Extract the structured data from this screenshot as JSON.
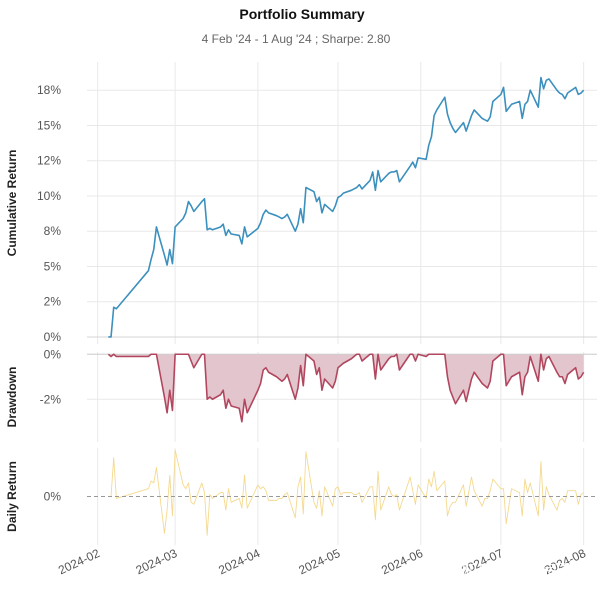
{
  "title": "Portfolio Summary",
  "subtitle": "4 Feb '24 -  1 Aug '24 ;  Sharpe: 2.80",
  "watermark": "知乎 @余睦宗寻",
  "colors": {
    "cumulative": "#3c90be",
    "drawdown_line": "#b1475f",
    "drawdown_fill": "#e3c5cd",
    "daily": "#f4d98f",
    "zero_line": "#999999"
  },
  "chart_data": [
    {
      "type": "line",
      "name": "cumulative-return",
      "ylabel": "Cumulative Return",
      "ylim": [
        -0.5,
        19.5
      ],
      "yticks": [
        0,
        2.5,
        5,
        7.5,
        10,
        12.5,
        15,
        17.5
      ],
      "ytick_labels": [
        "0%",
        "2%",
        "5%",
        "8%",
        "10%",
        "12%",
        "15%",
        "18%"
      ],
      "x_axis_start": "2024-01-28",
      "x": [
        "2024-02-05",
        "2024-02-06",
        "2024-02-07",
        "2024-02-08",
        "2024-02-20",
        "2024-02-21",
        "2024-02-22",
        "2024-02-23",
        "2024-02-26",
        "2024-02-27",
        "2024-02-28",
        "2024-02-29",
        "2024-03-01",
        "2024-03-04",
        "2024-03-05",
        "2024-03-06",
        "2024-03-07",
        "2024-03-08",
        "2024-03-11",
        "2024-03-12",
        "2024-03-13",
        "2024-03-14",
        "2024-03-15",
        "2024-03-18",
        "2024-03-19",
        "2024-03-20",
        "2024-03-21",
        "2024-03-22",
        "2024-03-25",
        "2024-03-26",
        "2024-03-27",
        "2024-03-28",
        "2024-04-01",
        "2024-04-02",
        "2024-04-03",
        "2024-04-04",
        "2024-04-05",
        "2024-04-08",
        "2024-04-09",
        "2024-04-10",
        "2024-04-11",
        "2024-04-12",
        "2024-04-15",
        "2024-04-16",
        "2024-04-17",
        "2024-04-18",
        "2024-04-19",
        "2024-04-22",
        "2024-04-23",
        "2024-04-24",
        "2024-04-25",
        "2024-04-26",
        "2024-04-29",
        "2024-04-30",
        "2024-05-01",
        "2024-05-02",
        "2024-05-03",
        "2024-05-06",
        "2024-05-07",
        "2024-05-08",
        "2024-05-09",
        "2024-05-10",
        "2024-05-13",
        "2024-05-14",
        "2024-05-15",
        "2024-05-16",
        "2024-05-17",
        "2024-05-20",
        "2024-05-21",
        "2024-05-22",
        "2024-05-23",
        "2024-05-24",
        "2024-05-28",
        "2024-05-29",
        "2024-05-30",
        "2024-05-31",
        "2024-06-03",
        "2024-06-04",
        "2024-06-05",
        "2024-06-06",
        "2024-06-07",
        "2024-06-10",
        "2024-06-11",
        "2024-06-12",
        "2024-06-13",
        "2024-06-14",
        "2024-06-17",
        "2024-06-18",
        "2024-06-20",
        "2024-06-21",
        "2024-06-24",
        "2024-06-25",
        "2024-06-26",
        "2024-06-27",
        "2024-06-28",
        "2024-07-01",
        "2024-07-02",
        "2024-07-03",
        "2024-07-05",
        "2024-07-08",
        "2024-07-09",
        "2024-07-10",
        "2024-07-11",
        "2024-07-12",
        "2024-07-15",
        "2024-07-16",
        "2024-07-17",
        "2024-07-18",
        "2024-07-19",
        "2024-07-22",
        "2024-07-23",
        "2024-07-24",
        "2024-07-25",
        "2024-07-26",
        "2024-07-29",
        "2024-07-30",
        "2024-07-31",
        "2024-08-01"
      ],
      "values": [
        0,
        0,
        2.1,
        2.0,
        4.7,
        5.5,
        6.2,
        7.8,
        5.8,
        5.1,
        6.2,
        5.2,
        7.8,
        8.4,
        8.8,
        9.6,
        9.3,
        8.9,
        9.6,
        9.8,
        7.6,
        7.7,
        7.6,
        7.8,
        8.0,
        7.2,
        7.6,
        7.3,
        7.2,
        6.6,
        7.8,
        7.1,
        7.7,
        8.1,
        8.7,
        9.0,
        8.8,
        8.6,
        8.5,
        8.4,
        8.5,
        8.7,
        7.5,
        8.0,
        9.1,
        8.1,
        10.6,
        10.3,
        9.6,
        9.9,
        8.8,
        9.4,
        8.9,
        9.3,
        9.9,
        10.0,
        10.2,
        10.4,
        10.5,
        10.6,
        10.8,
        10.5,
        11.1,
        11.7,
        10.4,
        11.8,
        11.0,
        11.6,
        11.7,
        11.7,
        11.8,
        11.0,
        12.1,
        12.4,
        12.0,
        12.7,
        12.6,
        13.6,
        14.2,
        15.7,
        16.1,
        17.0,
        15.8,
        15.2,
        14.8,
        14.5,
        15.2,
        14.6,
        15.7,
        16.1,
        15.5,
        15.4,
        15.3,
        15.6,
        16.7,
        17.2,
        17.7,
        16.0,
        16.5,
        16.7,
        15.5,
        16.5,
        16.7,
        17.5,
        16.3,
        18.4,
        17.6,
        18.2,
        18.3,
        17.5,
        17.3,
        17.2,
        16.9,
        17.3,
        17.7,
        17.2,
        17.3,
        17.5
      ]
    },
    {
      "type": "area",
      "name": "drawdown",
      "ylabel": "Drawdown",
      "ylim": [
        -3.9,
        0.1
      ],
      "yticks": [
        0,
        -2
      ],
      "ytick_labels": [
        "0%",
        "-2%"
      ],
      "x": [
        "2024-02-05",
        "2024-02-06",
        "2024-02-07",
        "2024-02-08",
        "2024-02-20",
        "2024-02-21",
        "2024-02-22",
        "2024-02-23",
        "2024-02-26",
        "2024-02-27",
        "2024-02-28",
        "2024-02-29",
        "2024-03-01",
        "2024-03-04",
        "2024-03-05",
        "2024-03-06",
        "2024-03-07",
        "2024-03-08",
        "2024-03-11",
        "2024-03-12",
        "2024-03-13",
        "2024-03-14",
        "2024-03-15",
        "2024-03-18",
        "2024-03-19",
        "2024-03-20",
        "2024-03-21",
        "2024-03-22",
        "2024-03-25",
        "2024-03-26",
        "2024-03-27",
        "2024-03-28",
        "2024-04-01",
        "2024-04-02",
        "2024-04-03",
        "2024-04-04",
        "2024-04-05",
        "2024-04-08",
        "2024-04-09",
        "2024-04-10",
        "2024-04-11",
        "2024-04-12",
        "2024-04-15",
        "2024-04-16",
        "2024-04-17",
        "2024-04-18",
        "2024-04-19",
        "2024-04-22",
        "2024-04-23",
        "2024-04-24",
        "2024-04-25",
        "2024-04-26",
        "2024-04-29",
        "2024-04-30",
        "2024-05-01",
        "2024-05-02",
        "2024-05-03",
        "2024-05-06",
        "2024-05-07",
        "2024-05-08",
        "2024-05-09",
        "2024-05-10",
        "2024-05-13",
        "2024-05-14",
        "2024-05-15",
        "2024-05-16",
        "2024-05-17",
        "2024-05-20",
        "2024-05-21",
        "2024-05-22",
        "2024-05-23",
        "2024-05-24",
        "2024-05-28",
        "2024-05-29",
        "2024-05-30",
        "2024-05-31",
        "2024-06-03",
        "2024-06-04",
        "2024-06-05",
        "2024-06-06",
        "2024-06-07",
        "2024-06-10",
        "2024-06-11",
        "2024-06-12",
        "2024-06-13",
        "2024-06-14",
        "2024-06-17",
        "2024-06-18",
        "2024-06-20",
        "2024-06-21",
        "2024-06-24",
        "2024-06-25",
        "2024-06-26",
        "2024-06-27",
        "2024-06-28",
        "2024-07-01",
        "2024-07-02",
        "2024-07-03",
        "2024-07-05",
        "2024-07-08",
        "2024-07-09",
        "2024-07-10",
        "2024-07-11",
        "2024-07-12",
        "2024-07-15",
        "2024-07-16",
        "2024-07-17",
        "2024-07-18",
        "2024-07-19",
        "2024-07-22",
        "2024-07-23",
        "2024-07-24",
        "2024-07-25",
        "2024-07-26",
        "2024-07-29",
        "2024-07-30",
        "2024-07-31",
        "2024-08-01"
      ],
      "values": [
        0,
        -0.1,
        0,
        -0.1,
        -0.1,
        0,
        0,
        0,
        -1.9,
        -2.6,
        -1.6,
        -2.5,
        0,
        0,
        0,
        0,
        -0.3,
        -0.6,
        0,
        0,
        -2.0,
        -1.9,
        -2.0,
        -1.8,
        -1.6,
        -2.4,
        -2.0,
        -2.3,
        -2.4,
        -3.0,
        -2.0,
        -2.6,
        -1.6,
        -1.3,
        -0.7,
        -0.6,
        -0.8,
        -1.0,
        -1.1,
        -1.2,
        -1.1,
        -0.9,
        -2.0,
        -1.5,
        -0.5,
        -1.4,
        0,
        -0.3,
        -0.9,
        -0.6,
        -1.6,
        -1.1,
        -1.5,
        -1.2,
        -0.6,
        -0.5,
        -0.4,
        -0.2,
        -0.1,
        0,
        0,
        -0.3,
        0,
        0,
        -1.1,
        0,
        -0.7,
        -0.2,
        -0.1,
        -0.1,
        0,
        -0.7,
        0,
        0,
        -0.3,
        0,
        -0.1,
        0,
        0,
        0,
        0,
        0,
        -1.0,
        -1.6,
        -1.9,
        -2.2,
        -1.6,
        -2.1,
        -1.1,
        -0.8,
        -1.3,
        -1.4,
        -1.5,
        -1.2,
        -0.3,
        0,
        0,
        -1.4,
        -1.0,
        -0.8,
        -1.8,
        -1.0,
        -0.8,
        -0.1,
        -1.2,
        0,
        -0.7,
        -0.2,
        -0.1,
        -0.8,
        -1.0,
        -1.0,
        -1.3,
        -0.9,
        -0.6,
        -1.1,
        -1.0,
        -0.8
      ]
    },
    {
      "type": "line",
      "name": "daily-return",
      "ylabel": "Daily Return",
      "ylim": [
        -2.5,
        2.5
      ],
      "yticks": [
        0
      ],
      "ytick_labels": [
        "0%"
      ],
      "x": [
        "2024-02-05",
        "2024-02-06",
        "2024-02-07",
        "2024-02-08",
        "2024-02-20",
        "2024-02-21",
        "2024-02-22",
        "2024-02-23",
        "2024-02-26",
        "2024-02-27",
        "2024-02-28",
        "2024-02-29",
        "2024-03-01",
        "2024-03-04",
        "2024-03-05",
        "2024-03-06",
        "2024-03-07",
        "2024-03-08",
        "2024-03-11",
        "2024-03-12",
        "2024-03-13",
        "2024-03-14",
        "2024-03-15",
        "2024-03-18",
        "2024-03-19",
        "2024-03-20",
        "2024-03-21",
        "2024-03-22",
        "2024-03-25",
        "2024-03-26",
        "2024-03-27",
        "2024-03-28",
        "2024-04-01",
        "2024-04-02",
        "2024-04-03",
        "2024-04-04",
        "2024-04-05",
        "2024-04-08",
        "2024-04-09",
        "2024-04-10",
        "2024-04-11",
        "2024-04-12",
        "2024-04-15",
        "2024-04-16",
        "2024-04-17",
        "2024-04-18",
        "2024-04-19",
        "2024-04-22",
        "2024-04-23",
        "2024-04-24",
        "2024-04-25",
        "2024-04-26",
        "2024-04-29",
        "2024-04-30",
        "2024-05-01",
        "2024-05-02",
        "2024-05-03",
        "2024-05-06",
        "2024-05-07",
        "2024-05-08",
        "2024-05-09",
        "2024-05-10",
        "2024-05-13",
        "2024-05-14",
        "2024-05-15",
        "2024-05-16",
        "2024-05-17",
        "2024-05-20",
        "2024-05-21",
        "2024-05-22",
        "2024-05-23",
        "2024-05-24",
        "2024-05-28",
        "2024-05-29",
        "2024-05-30",
        "2024-05-31",
        "2024-06-03",
        "2024-06-04",
        "2024-06-05",
        "2024-06-06",
        "2024-06-07",
        "2024-06-10",
        "2024-06-11",
        "2024-06-12",
        "2024-06-13",
        "2024-06-14",
        "2024-06-17",
        "2024-06-18",
        "2024-06-20",
        "2024-06-21",
        "2024-06-24",
        "2024-06-25",
        "2024-06-26",
        "2024-06-27",
        "2024-06-28",
        "2024-07-01",
        "2024-07-02",
        "2024-07-03",
        "2024-07-05",
        "2024-07-08",
        "2024-07-09",
        "2024-07-10",
        "2024-07-11",
        "2024-07-12",
        "2024-07-15",
        "2024-07-16",
        "2024-07-17",
        "2024-07-18",
        "2024-07-19",
        "2024-07-22",
        "2024-07-23",
        "2024-07-24",
        "2024-07-25",
        "2024-07-26",
        "2024-07-29",
        "2024-07-30",
        "2024-07-31",
        "2024-08-01"
      ],
      "values": [
        0,
        0,
        2.0,
        -0.1,
        0.4,
        0.8,
        0.7,
        1.5,
        -1.9,
        -0.7,
        1.1,
        -1.0,
        2.4,
        0.6,
        0.4,
        0.7,
        -0.3,
        -0.4,
        0.7,
        0.2,
        -2.0,
        0.1,
        -0.1,
        0.2,
        0.2,
        -0.7,
        0.4,
        -0.3,
        -0.1,
        -0.6,
        1.1,
        -0.6,
        0.6,
        0.4,
        0.5,
        0.3,
        -0.2,
        -0.2,
        -0.1,
        -0.1,
        0.1,
        0.2,
        -1.1,
        0.5,
        1.0,
        -0.9,
        2.3,
        -0.3,
        -0.6,
        0.3,
        -1.0,
        0.5,
        -0.5,
        0.4,
        0.5,
        0.1,
        0.2,
        0.2,
        0.1,
        0.1,
        0.2,
        -0.3,
        0.5,
        0.5,
        -1.2,
        1.3,
        -0.7,
        0.5,
        0.1,
        0,
        0.1,
        -0.7,
        1.0,
        0.3,
        -0.4,
        0.6,
        -0.1,
        0.9,
        0.5,
        1.3,
        0.3,
        0.8,
        -1.0,
        -0.5,
        -0.3,
        -0.3,
        0.6,
        -0.5,
        1.0,
        0.3,
        -0.5,
        -0.1,
        -0.1,
        0.3,
        0.9,
        0.4,
        0.4,
        -1.4,
        0.4,
        0.2,
        -1.0,
        0.9,
        0.2,
        0.7,
        -1.0,
        1.8,
        -0.7,
        0.5,
        0.1,
        -0.7,
        -0.2,
        -0.1,
        -0.3,
        0.3,
        0.3,
        -0.4,
        0.1,
        0.2
      ]
    }
  ],
  "x_ticks": [
    "2024-02",
    "2024-03",
    "2024-04",
    "2024-05",
    "2024-06",
    "2024-07",
    "2024-08"
  ],
  "x_tick_dates": [
    "2024-02-01",
    "2024-03-01",
    "2024-04-01",
    "2024-05-01",
    "2024-06-01",
    "2024-07-01",
    "2024-08-01"
  ],
  "x_end": "2024-08-06"
}
